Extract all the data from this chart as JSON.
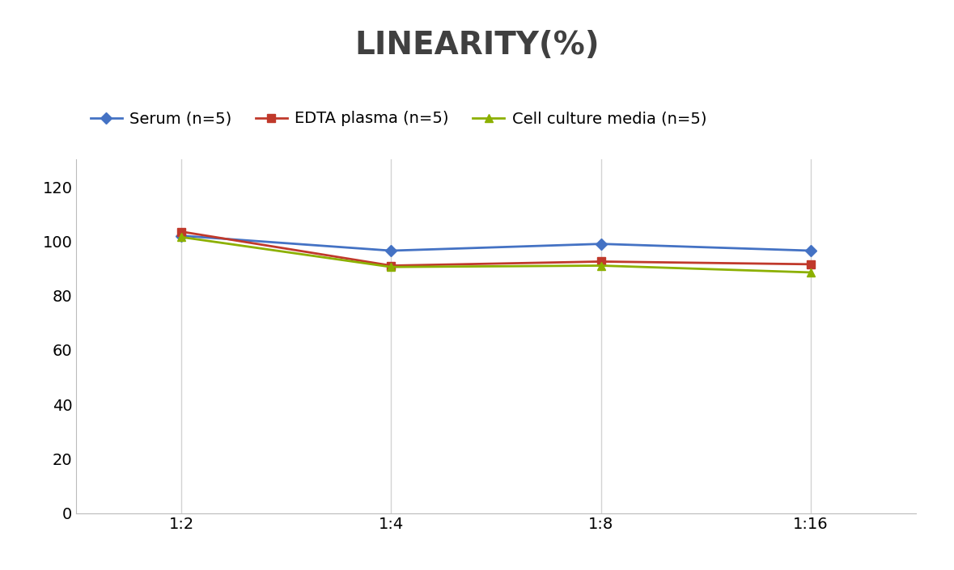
{
  "title": "LINEARITY(%)",
  "x_labels": [
    "1:2",
    "1:4",
    "1:8",
    "1:16"
  ],
  "x_positions": [
    0,
    1,
    2,
    3
  ],
  "series": [
    {
      "name": "Serum (n=5)",
      "values": [
        102,
        96.5,
        99,
        96.5
      ],
      "color": "#4472C4",
      "marker": "D",
      "linewidth": 2.0,
      "markersize": 7
    },
    {
      "name": "EDTA plasma (n=5)",
      "values": [
        103.5,
        91,
        92.5,
        91.5
      ],
      "color": "#C0392B",
      "marker": "s",
      "linewidth": 2.0,
      "markersize": 7
    },
    {
      "name": "Cell culture media (n=5)",
      "values": [
        101.5,
        90.5,
        91,
        88.5
      ],
      "color": "#8CB000",
      "marker": "^",
      "linewidth": 2.0,
      "markersize": 7
    }
  ],
  "ylim": [
    0,
    130
  ],
  "yticks": [
    0,
    20,
    40,
    60,
    80,
    100,
    120
  ],
  "background_color": "#FFFFFF",
  "grid_color": "#D3D3D3",
  "title_fontsize": 28,
  "legend_fontsize": 14,
  "tick_fontsize": 14,
  "title_color": "#404040"
}
